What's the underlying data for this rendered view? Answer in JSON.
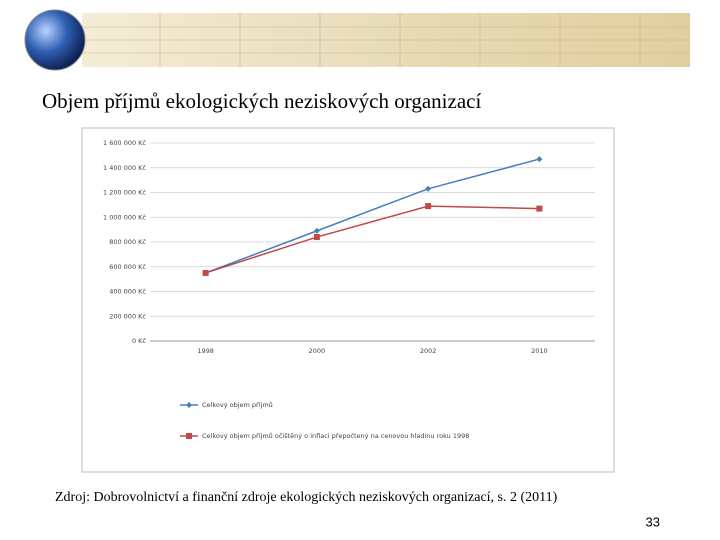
{
  "slide_title": "Objem příjmů ekologických neziskových organizací",
  "source": "Zdroj: Dobrovolnictví a finanční zdroje ekologických neziskových organizací, s. 2 (2011)",
  "page_number": "33",
  "chart_data": {
    "type": "line",
    "categories": [
      "1998",
      "2000",
      "2002",
      "2010"
    ],
    "series": [
      {
        "name": "Celkový objem příjmů",
        "color": "#4a7ebb",
        "marker": "diamond",
        "values": [
          550000,
          890000,
          1230000,
          1470000
        ]
      },
      {
        "name": "Celkový objem příjmů očištěný o inflaci přepočtený na cenovou hladinu roku 1998",
        "color": "#be4b48",
        "marker": "square",
        "values": [
          550000,
          840000,
          1090000,
          1070000
        ]
      }
    ],
    "ylim": [
      0,
      1600000
    ],
    "yticks": [
      {
        "value": 0,
        "label": "0 Kč"
      },
      {
        "value": 200000,
        "label": "200 000 Kč"
      },
      {
        "value": 400000,
        "label": "400 000 Kč"
      },
      {
        "value": 600000,
        "label": "600 000 Kč"
      },
      {
        "value": 800000,
        "label": "800 000 Kč"
      },
      {
        "value": 1000000,
        "label": "1 000 000 Kč"
      },
      {
        "value": 1200000,
        "label": "1 200 000 Kč"
      },
      {
        "value": 1400000,
        "label": "1 400 000 Kč"
      },
      {
        "value": 1600000,
        "label": "1 600 000 Kč"
      }
    ],
    "grid": true,
    "legend": "bottom"
  }
}
